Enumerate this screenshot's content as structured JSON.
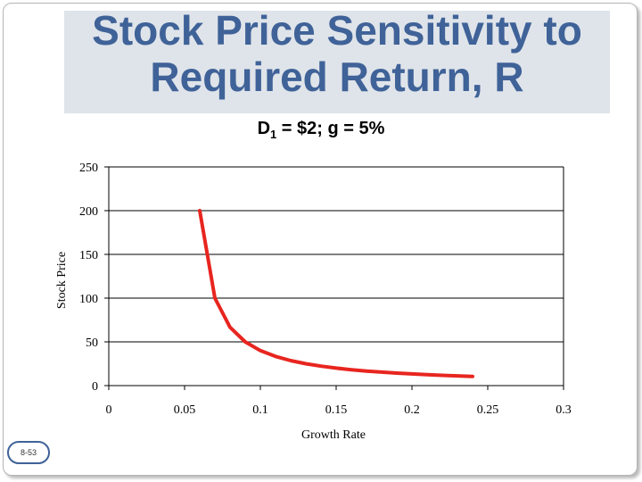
{
  "slide": {
    "title_line1": "Stock Price Sensitivity to",
    "title_line2": "Required Return, R",
    "subtitle_prefix": "D",
    "subtitle_sub": "1",
    "subtitle_suffix": " = $2; g = 5%",
    "page_number": "8-53"
  },
  "colors": {
    "title": "#3f6298",
    "series": "#e8251f",
    "title_box": "#dfe4ea"
  },
  "chart_data": {
    "type": "line",
    "title": "D1 = $2; g = 5%",
    "xlabel": "Growth Rate",
    "ylabel": "Stock Price",
    "xlim": [
      0,
      0.3
    ],
    "ylim": [
      0,
      250
    ],
    "xticks": [
      0,
      0.05,
      0.1,
      0.15,
      0.2,
      0.25,
      0.3
    ],
    "xtick_labels": [
      "0",
      "0.05",
      "0.1",
      "0.15",
      "0.2",
      "0.25",
      "0.3"
    ],
    "yticks": [
      0,
      50,
      100,
      150,
      200,
      250
    ],
    "ytick_labels": [
      "0",
      "50",
      "100",
      "150",
      "200",
      "250"
    ],
    "grid": true,
    "series": [
      {
        "name": "Stock Price",
        "x": [
          0.06,
          0.07,
          0.08,
          0.09,
          0.1,
          0.11,
          0.12,
          0.13,
          0.14,
          0.15,
          0.16,
          0.17,
          0.18,
          0.19,
          0.2,
          0.21,
          0.22,
          0.23,
          0.24
        ],
        "values": [
          200,
          100,
          66.67,
          50,
          40,
          33.33,
          28.57,
          25,
          22.22,
          20,
          18.18,
          16.67,
          15.38,
          14.29,
          13.33,
          12.5,
          11.76,
          11.11,
          10.53
        ]
      }
    ]
  }
}
